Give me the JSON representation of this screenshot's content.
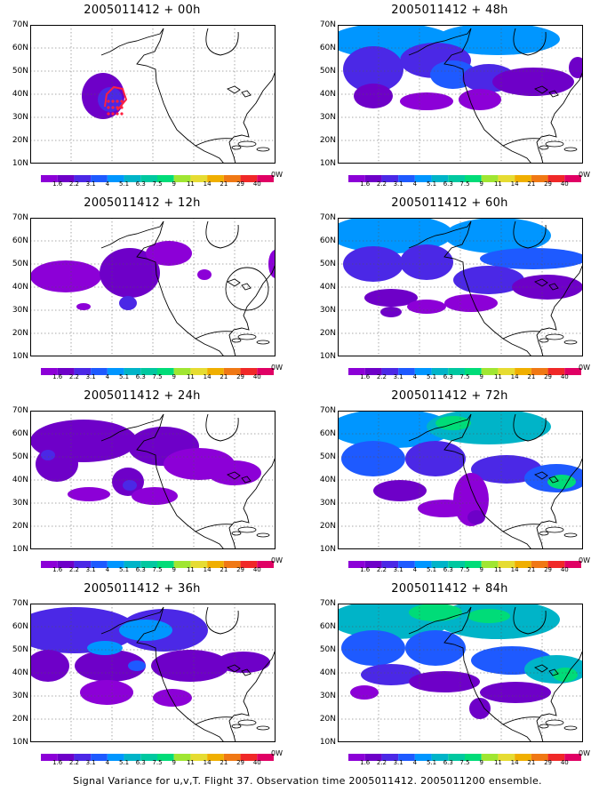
{
  "caption": "Signal Variance for u,v,T. Flight 37. Observation time 2005011412. 2005011200 ensemble.",
  "lat_labels": [
    "70N",
    "60N",
    "50N",
    "40N",
    "30N",
    "20N",
    "10N"
  ],
  "colorbar": {
    "labels": [
      "1.6",
      "2.2",
      "3.1",
      "4",
      "5.1",
      "6.3",
      "7.5",
      "9",
      "11",
      "14",
      "21",
      "29",
      "40"
    ],
    "colors": [
      "#8c00d7",
      "#6e00c8",
      "#4b28e6",
      "#1e5aff",
      "#0096ff",
      "#00b4c8",
      "#00c8a0",
      "#00dc78",
      "#a0e632",
      "#e6dc32",
      "#f0af00",
      "#f07814",
      "#f02828",
      "#e00064"
    ],
    "end_label": "0W"
  },
  "chart_data": [
    {
      "type": "heatmap",
      "title": "2005011412 + 00h",
      "ylim": [
        "10N",
        "70N"
      ],
      "grid": true,
      "legend": "bottom colorbar"
    },
    {
      "type": "heatmap",
      "title": "2005011412 + 48h",
      "ylim": [
        "10N",
        "70N"
      ],
      "grid": true,
      "legend": "bottom colorbar"
    },
    {
      "type": "heatmap",
      "title": "2005011412 + 12h",
      "ylim": [
        "10N",
        "70N"
      ],
      "grid": true,
      "legend": "bottom colorbar"
    },
    {
      "type": "heatmap",
      "title": "2005011412 + 60h",
      "ylim": [
        "10N",
        "70N"
      ],
      "grid": true,
      "legend": "bottom colorbar"
    },
    {
      "type": "heatmap",
      "title": "2005011412 + 24h",
      "ylim": [
        "10N",
        "70N"
      ],
      "grid": true,
      "legend": "bottom colorbar"
    },
    {
      "type": "heatmap",
      "title": "2005011412 + 72h",
      "ylim": [
        "10N",
        "70N"
      ],
      "grid": true,
      "legend": "bottom colorbar"
    },
    {
      "type": "heatmap",
      "title": "2005011412 + 36h",
      "ylim": [
        "10N",
        "70N"
      ],
      "grid": true,
      "legend": "bottom colorbar"
    },
    {
      "type": "heatmap",
      "title": "2005011412 + 84h",
      "ylim": [
        "10N",
        "70N"
      ],
      "grid": true,
      "legend": "bottom colorbar"
    }
  ]
}
